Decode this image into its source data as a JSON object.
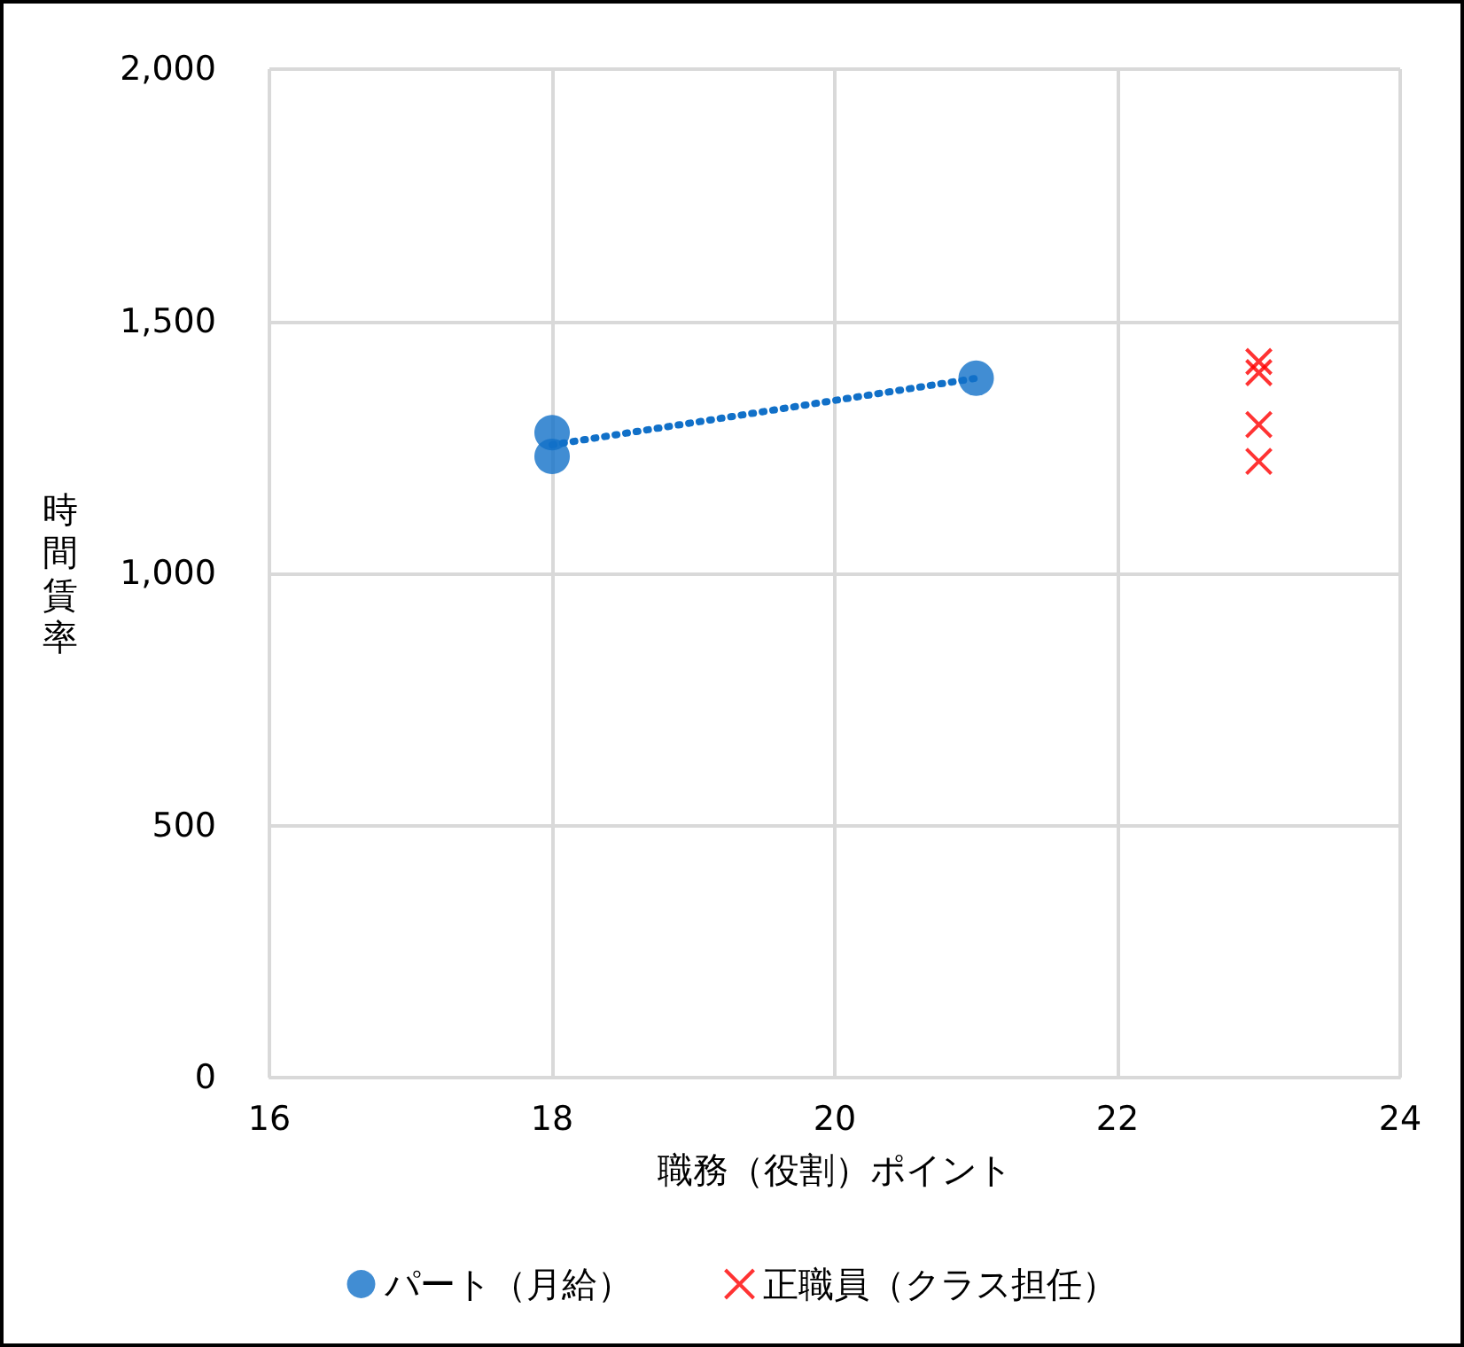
{
  "chart_data": {
    "type": "scatter",
    "xlabel": "職務（役割）ポイント",
    "ylabel": "時間賃率",
    "series": [
      {
        "name": "パート（月給）",
        "color": "#1170c8",
        "x": [
          18,
          18,
          21
        ],
        "values": [
          1279,
          1232,
          1387
        ],
        "marker": "circle"
      },
      {
        "name": "正職員（クラス担任）",
        "color": "#ff0000",
        "x": [
          23,
          23,
          23,
          23
        ],
        "values": [
          1420,
          1398,
          1295,
          1222
        ],
        "marker": "cross"
      },
      {
        "type": "line",
        "color": "#1170c8",
        "x": [
          18,
          21
        ],
        "values": [
          1255,
          1387
        ],
        "marker": "none",
        "line_style": "dotted"
      }
    ],
    "xlim": [
      16,
      24
    ],
    "xticks": [
      16,
      18,
      20,
      22,
      24
    ],
    "ylim": [
      0,
      2000
    ],
    "yticks": [
      0,
      {
        "value": 500,
        "label": "500"
      },
      {
        "value": 1000,
        "label": "1,000"
      },
      {
        "value": 1500,
        "label": "1,500"
      },
      {
        "value": 2000,
        "label": "2,000"
      }
    ],
    "grid": true,
    "legend": "bottom"
  }
}
